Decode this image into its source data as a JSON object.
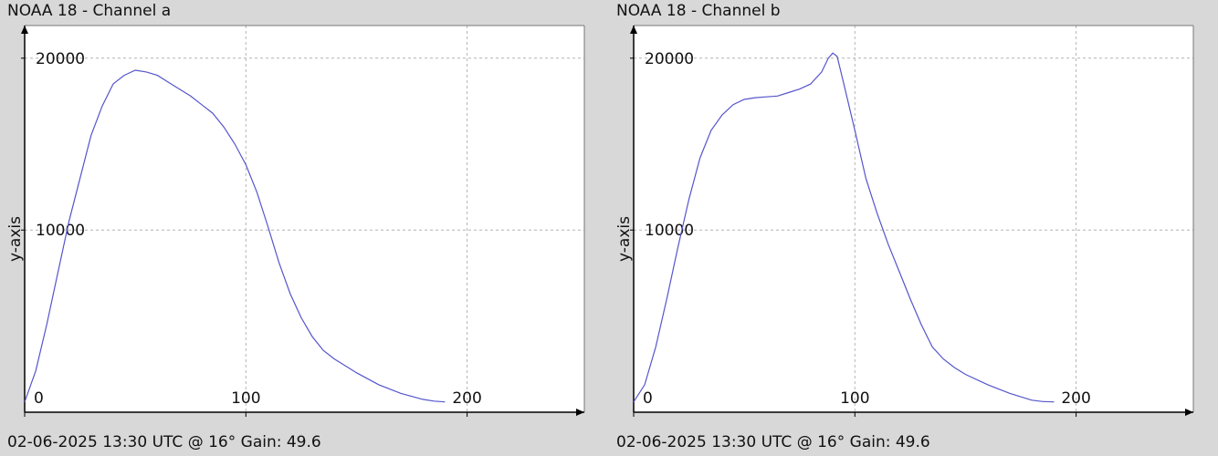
{
  "chart_data": [
    {
      "type": "line",
      "title": "NOAA 18 - Channel a",
      "footer": "02-06-2025 13:30 UTC @ 16° Gain: 49.6",
      "xlabel": "",
      "ylabel": "y-axis",
      "xlim": [
        0,
        253
      ],
      "ylim": [
        -600,
        21900
      ],
      "x_ticks": [
        0,
        100,
        200
      ],
      "y_ticks": [
        10000,
        20000
      ],
      "grid": true,
      "line_color": "#5555cc",
      "series": [
        {
          "x": [
            0,
            5,
            10,
            15,
            20,
            25,
            30,
            35,
            40,
            45,
            50,
            55,
            60,
            65,
            70,
            75,
            80,
            85,
            90,
            95,
            100,
            105,
            110,
            115,
            120,
            125,
            130,
            135,
            140,
            150,
            160,
            170,
            180,
            185,
            190
          ],
          "y": [
            0,
            1800,
            4500,
            7500,
            10500,
            13000,
            15500,
            17200,
            18500,
            19000,
            19300,
            19200,
            19000,
            18600,
            18200,
            17800,
            17300,
            16800,
            16000,
            15000,
            13800,
            12200,
            10200,
            8100,
            6300,
            4900,
            3800,
            3000,
            2500,
            1700,
            1000,
            500,
            150,
            50,
            0
          ]
        }
      ]
    },
    {
      "type": "line",
      "title": "NOAA 18 - Channel b",
      "footer": "02-06-2025 13:30 UTC @ 16° Gain: 49.6",
      "xlabel": "",
      "ylabel": "y-axis",
      "xlim": [
        0,
        253
      ],
      "ylim": [
        -600,
        21900
      ],
      "x_ticks": [
        0,
        100,
        200
      ],
      "y_ticks": [
        10000,
        20000
      ],
      "grid": true,
      "line_color": "#5555cc",
      "series": [
        {
          "x": [
            0,
            5,
            10,
            15,
            20,
            25,
            30,
            35,
            40,
            45,
            50,
            55,
            60,
            65,
            70,
            75,
            80,
            85,
            88,
            90,
            92,
            95,
            100,
            105,
            110,
            115,
            120,
            125,
            130,
            135,
            140,
            145,
            150,
            160,
            170,
            180,
            185,
            190
          ],
          "y": [
            0,
            1000,
            3200,
            6000,
            9000,
            11800,
            14200,
            15800,
            16700,
            17300,
            17600,
            17700,
            17750,
            17800,
            18000,
            18200,
            18500,
            19200,
            20000,
            20300,
            20100,
            18500,
            15800,
            13000,
            11000,
            9200,
            7600,
            6000,
            4500,
            3200,
            2500,
            2000,
            1600,
            1000,
            500,
            100,
            20,
            0
          ]
        }
      ]
    }
  ]
}
